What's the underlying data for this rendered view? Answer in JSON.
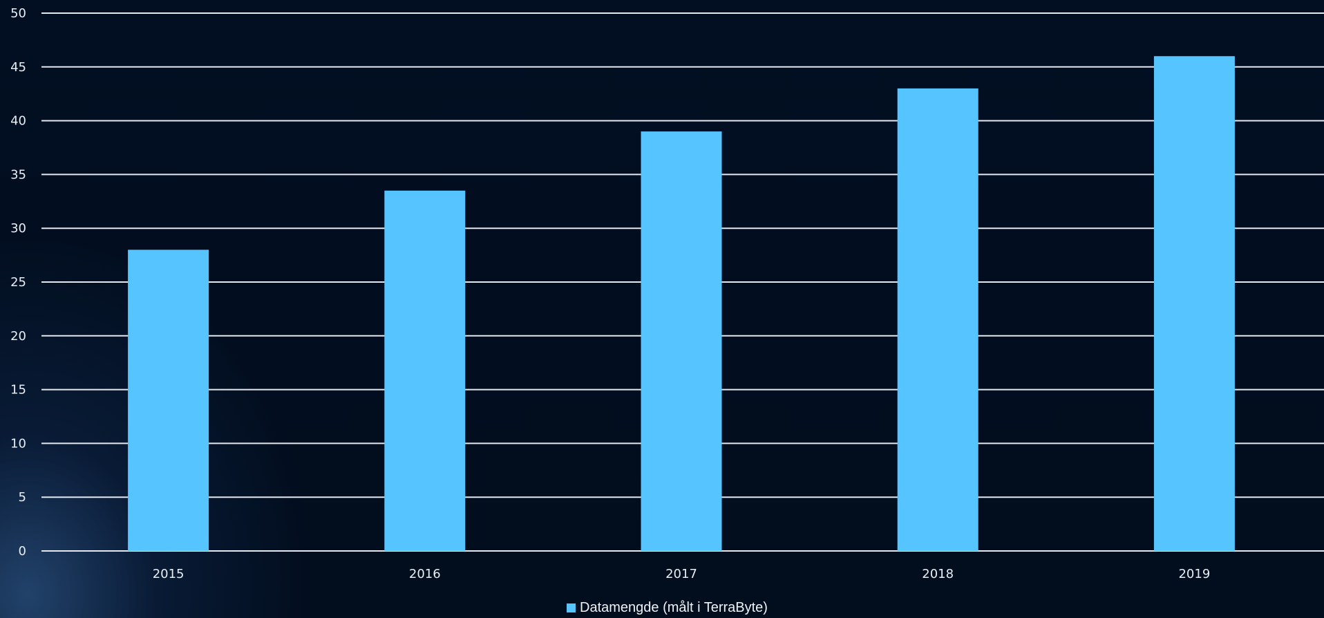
{
  "chart_data": {
    "type": "bar",
    "categories": [
      "2015",
      "2016",
      "2017",
      "2018",
      "2019"
    ],
    "series": [
      {
        "name": "Datamengde (målt i TerraByte)",
        "values": [
          28,
          33.5,
          39,
          43,
          46
        ]
      }
    ],
    "ylim": [
      0,
      50
    ],
    "yticks": [
      0,
      5,
      10,
      15,
      20,
      25,
      30,
      35,
      40,
      45,
      50
    ],
    "grid": true,
    "legend_position": "bottom",
    "colors": {
      "bar": "#56c4ff",
      "grid": "#e6eaf0",
      "text": "#e9eef5",
      "background": "#020e1f"
    }
  }
}
